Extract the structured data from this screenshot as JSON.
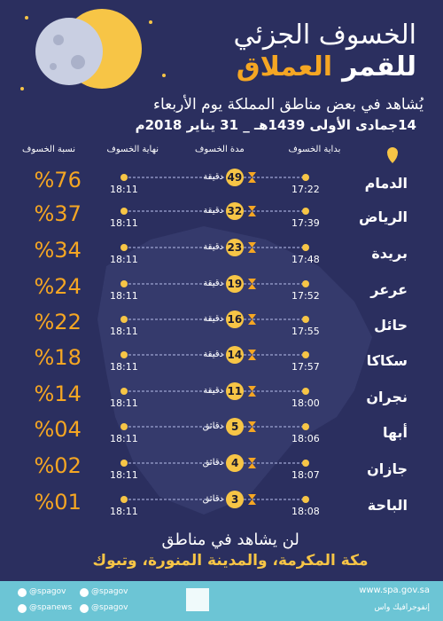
{
  "header": {
    "title_line1": "الخسوف الجزئي",
    "title_line2_a": "للقمر",
    "title_line2_b": "العملاق",
    "subtitle": "يُشاهد في بعض مناطق المملكة يوم الأربعاء",
    "date": "14جمادى الأولى 1439هـ _ 31 يناير 2018م"
  },
  "table": {
    "columns": [
      "بداية الخسوف",
      "مدة الخسوف",
      "نهاية الخسوف",
      "نسبة الخسوف"
    ],
    "rows": [
      [
        "الدمام",
        "17:22",
        "49",
        "دقيقة",
        "18:11",
        "%76"
      ],
      [
        "الرياض",
        "17:39",
        "32",
        "دقيقة",
        "18:11",
        "%37"
      ],
      [
        "بريدة",
        "17:48",
        "23",
        "دقيقة",
        "18:11",
        "%34"
      ],
      [
        "عرعر",
        "17:52",
        "19",
        "دقيقة",
        "18:11",
        "%24"
      ],
      [
        "حائل",
        "17:55",
        "16",
        "دقيقة",
        "18:11",
        "%22"
      ],
      [
        "سكاكا",
        "17:57",
        "14",
        "دقيقة",
        "18:11",
        "%18"
      ],
      [
        "نجران",
        "18:00",
        "11",
        "دقيقة",
        "18:11",
        "%14"
      ],
      [
        "أبها",
        "18:06",
        "5",
        "دقائق",
        "18:11",
        "%04"
      ],
      [
        "جازان",
        "18:07",
        "4",
        "دقائق",
        "18:11",
        "%02"
      ],
      [
        "الباحة",
        "18:08",
        "3",
        "دقائق",
        "18:11",
        "%01"
      ]
    ]
  },
  "footer": {
    "note": "لن يشاهد في مناطق",
    "regions": "مكة المكرمة، والمدينة المنورة، وتبوك"
  },
  "bar": {
    "handles": [
      "@spagov",
      "@spanews",
      "@spagov",
      "@spagov"
    ],
    "website": "www.spa.gov.sa",
    "credit": "إنفوجرافيك واس"
  }
}
